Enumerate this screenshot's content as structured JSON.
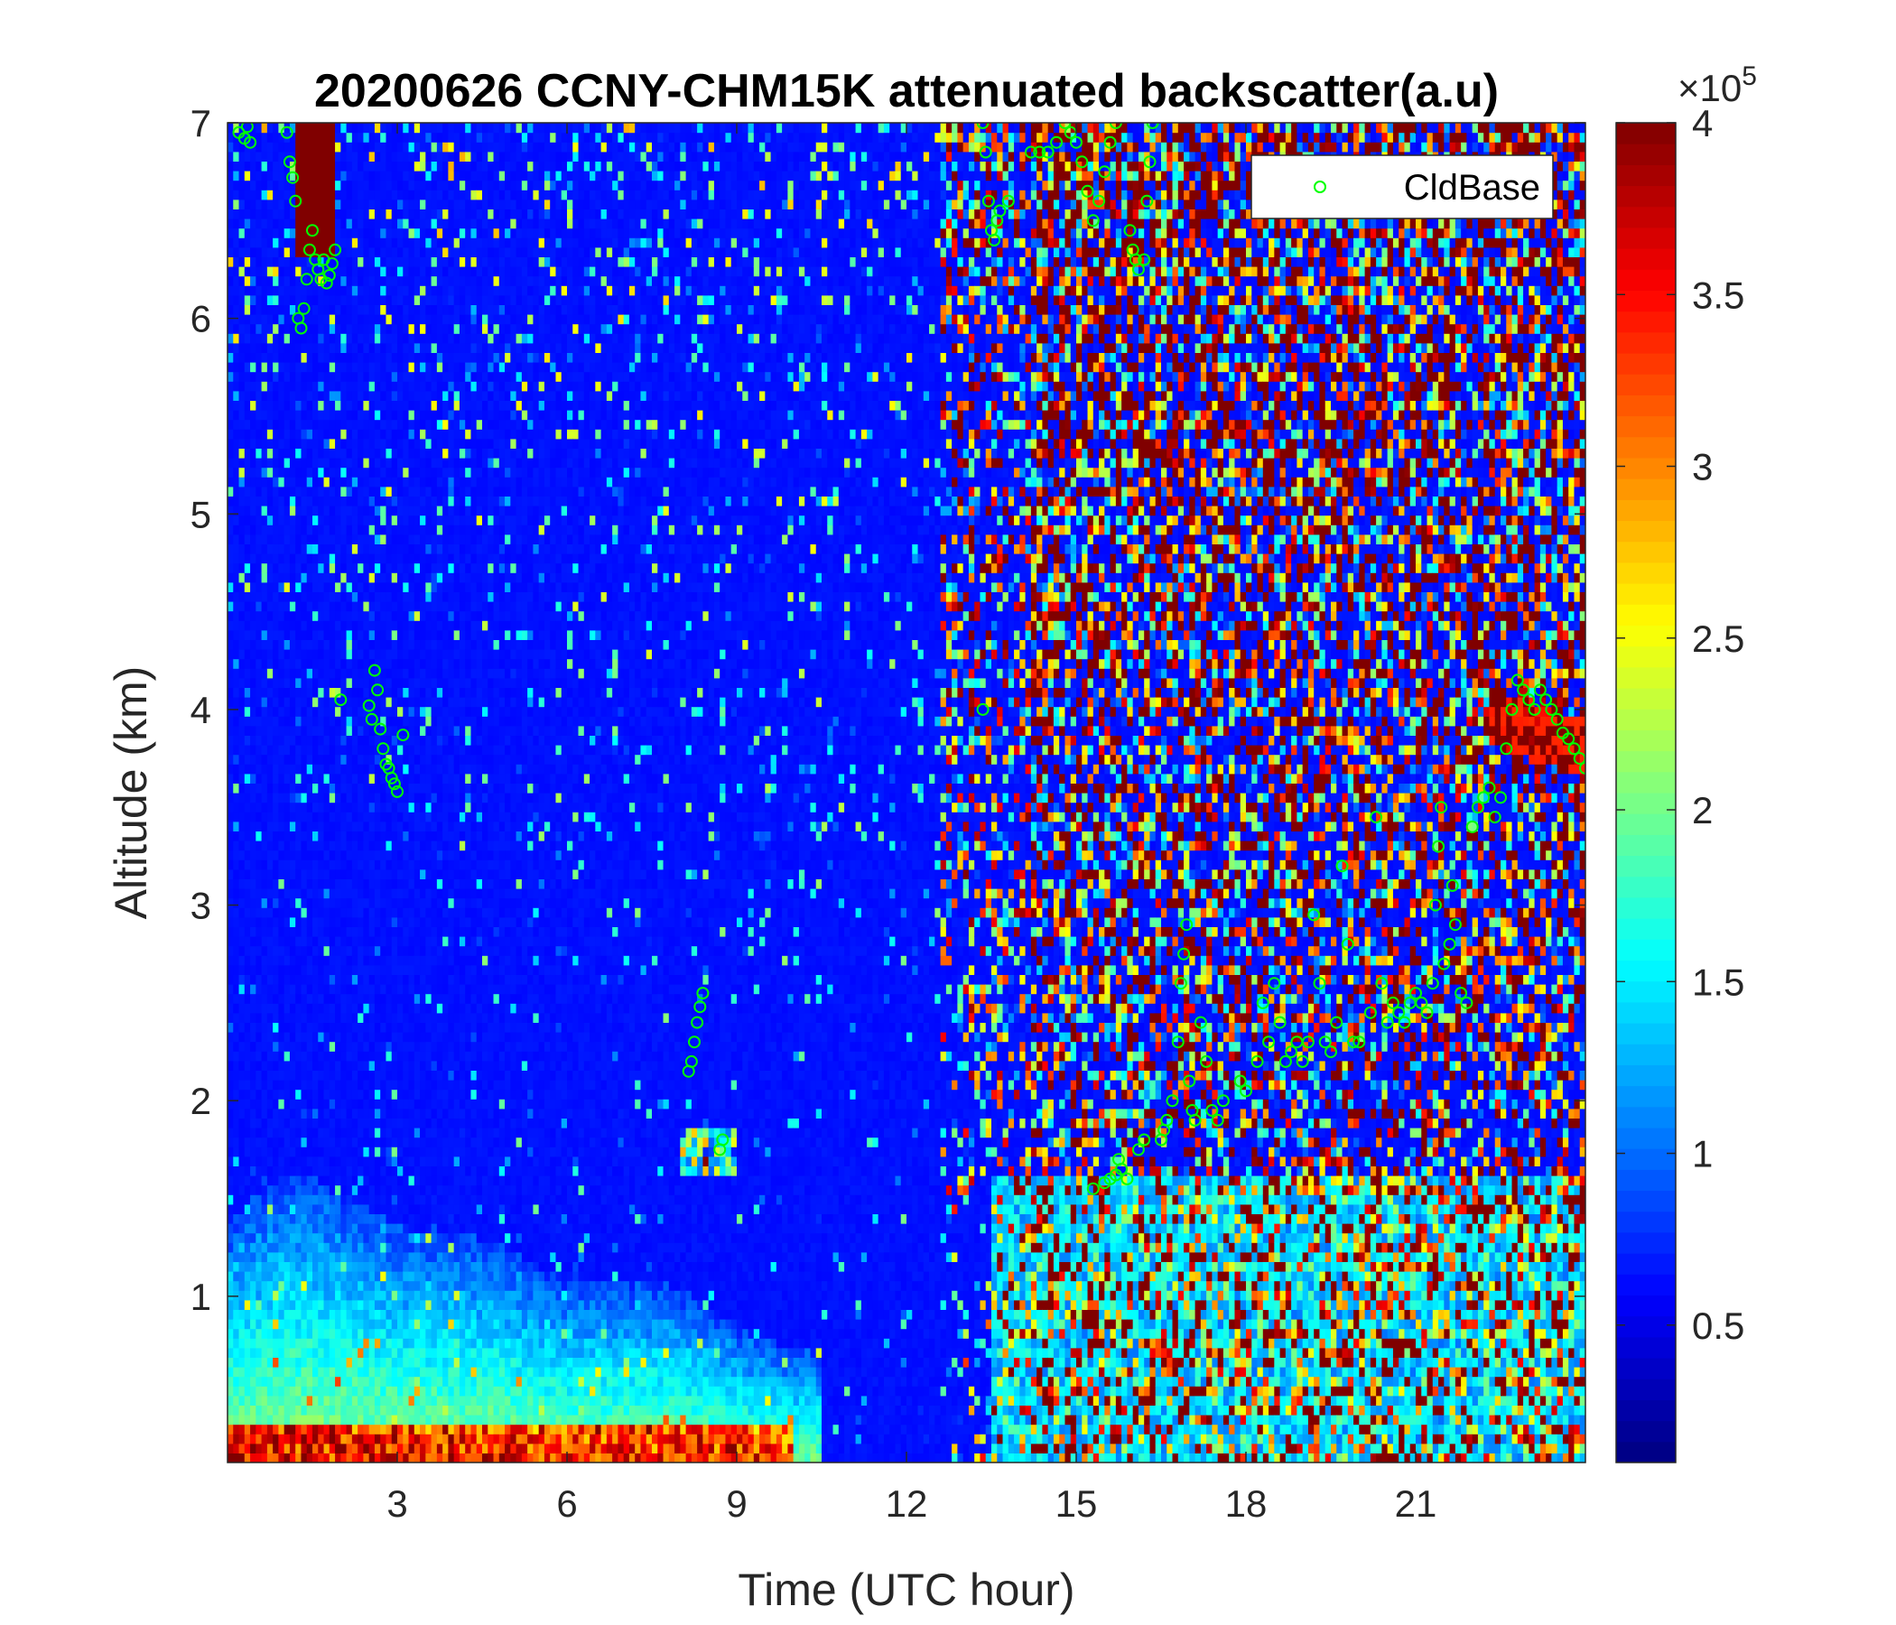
{
  "chart_data": {
    "type": "heatmap",
    "title": "20200626 CCNY-CHM15K attenuated backscatter(a.u)",
    "xlabel": "Time (UTC hour)",
    "ylabel": "Altitude (km)",
    "xlim": [
      0,
      24
    ],
    "ylim": [
      0.15,
      7
    ],
    "xticks": [
      3,
      6,
      9,
      12,
      15,
      18,
      21
    ],
    "yticks": [
      1,
      2,
      3,
      4,
      5,
      6,
      7
    ],
    "colorbar": {
      "colormap": "jet",
      "range": [
        0.1,
        4.0
      ],
      "ticks": [
        0.5,
        1,
        1.5,
        2,
        2.5,
        3,
        3.5,
        4
      ],
      "tick_labels": [
        "0.5",
        "1",
        "1.5",
        "2",
        "2.5",
        "3",
        "3.5",
        "4"
      ],
      "exponent_base": "×10",
      "exponent_power": "5"
    },
    "legend": {
      "position": "top-right",
      "entries": [
        {
          "name": "CldBase",
          "marker": "circle",
          "color": "#00ff00"
        }
      ]
    },
    "series": [
      {
        "name": "CldBase",
        "type": "scatter",
        "points": [
          [
            0.2,
            6.95
          ],
          [
            0.3,
            6.92
          ],
          [
            0.35,
            6.98
          ],
          [
            0.4,
            6.9
          ],
          [
            1.05,
            6.95
          ],
          [
            1.1,
            6.8
          ],
          [
            1.15,
            6.72
          ],
          [
            1.2,
            6.6
          ],
          [
            1.25,
            6.0
          ],
          [
            1.3,
            5.95
          ],
          [
            1.35,
            6.05
          ],
          [
            1.4,
            6.2
          ],
          [
            1.45,
            6.35
          ],
          [
            1.5,
            6.45
          ],
          [
            1.55,
            6.3
          ],
          [
            1.6,
            6.25
          ],
          [
            1.65,
            6.2
          ],
          [
            1.7,
            6.3
          ],
          [
            1.75,
            6.18
          ],
          [
            1.8,
            6.22
          ],
          [
            1.85,
            6.28
          ],
          [
            1.9,
            6.35
          ],
          [
            2.0,
            4.05
          ],
          [
            2.5,
            4.02
          ],
          [
            2.55,
            3.95
          ],
          [
            2.6,
            4.2
          ],
          [
            2.65,
            4.1
          ],
          [
            2.7,
            3.9
          ],
          [
            2.75,
            3.8
          ],
          [
            2.8,
            3.72
          ],
          [
            2.85,
            3.7
          ],
          [
            2.9,
            3.65
          ],
          [
            2.95,
            3.62
          ],
          [
            3.0,
            3.58
          ],
          [
            3.1,
            3.87
          ],
          [
            8.15,
            2.15
          ],
          [
            8.2,
            2.2
          ],
          [
            8.25,
            2.3
          ],
          [
            8.3,
            2.4
          ],
          [
            8.35,
            2.48
          ],
          [
            8.4,
            2.55
          ],
          [
            8.7,
            1.75
          ],
          [
            8.75,
            1.8
          ],
          [
            13.35,
            7.0
          ],
          [
            13.4,
            6.85
          ],
          [
            13.45,
            6.6
          ],
          [
            13.5,
            6.45
          ],
          [
            13.55,
            6.4
          ],
          [
            13.6,
            6.5
          ],
          [
            13.65,
            6.55
          ],
          [
            13.8,
            6.6
          ],
          [
            13.35,
            4.0
          ],
          [
            14.2,
            6.85
          ],
          [
            14.35,
            6.85
          ],
          [
            14.5,
            6.85
          ],
          [
            14.65,
            6.9
          ],
          [
            14.8,
            7.0
          ],
          [
            14.9,
            6.95
          ],
          [
            15.0,
            6.9
          ],
          [
            15.1,
            6.8
          ],
          [
            15.2,
            6.65
          ],
          [
            15.3,
            6.5
          ],
          [
            15.4,
            6.6
          ],
          [
            15.5,
            6.75
          ],
          [
            15.6,
            6.9
          ],
          [
            15.7,
            7.0
          ],
          [
            15.95,
            6.45
          ],
          [
            16.0,
            6.35
          ],
          [
            16.05,
            6.3
          ],
          [
            16.1,
            6.25
          ],
          [
            16.2,
            6.3
          ],
          [
            16.25,
            6.6
          ],
          [
            16.3,
            6.8
          ],
          [
            16.35,
            7.0
          ],
          [
            15.3,
            1.55
          ],
          [
            15.5,
            1.58
          ],
          [
            15.6,
            1.6
          ],
          [
            15.7,
            1.62
          ],
          [
            15.75,
            1.7
          ],
          [
            15.8,
            1.65
          ],
          [
            15.9,
            1.6
          ],
          [
            16.1,
            1.75
          ],
          [
            16.2,
            1.8
          ],
          [
            16.5,
            1.8
          ],
          [
            16.55,
            1.85
          ],
          [
            16.6,
            1.9
          ],
          [
            16.7,
            2.0
          ],
          [
            16.8,
            2.3
          ],
          [
            16.85,
            2.6
          ],
          [
            16.9,
            2.75
          ],
          [
            16.95,
            2.9
          ],
          [
            17.0,
            2.1
          ],
          [
            17.05,
            1.95
          ],
          [
            17.1,
            1.9
          ],
          [
            17.2,
            2.4
          ],
          [
            17.3,
            2.2
          ],
          [
            17.4,
            1.95
          ],
          [
            17.5,
            1.9
          ],
          [
            17.6,
            2.0
          ],
          [
            17.9,
            2.1
          ],
          [
            18.0,
            2.05
          ],
          [
            18.2,
            2.2
          ],
          [
            18.3,
            2.5
          ],
          [
            18.4,
            2.3
          ],
          [
            18.5,
            2.6
          ],
          [
            18.6,
            2.4
          ],
          [
            18.7,
            2.2
          ],
          [
            18.8,
            2.25
          ],
          [
            18.9,
            2.3
          ],
          [
            19.0,
            2.2
          ],
          [
            19.1,
            2.3
          ],
          [
            19.2,
            2.95
          ],
          [
            19.3,
            2.6
          ],
          [
            19.4,
            2.3
          ],
          [
            19.5,
            2.25
          ],
          [
            19.6,
            2.4
          ],
          [
            19.7,
            3.2
          ],
          [
            19.8,
            2.8
          ],
          [
            19.9,
            2.3
          ],
          [
            20.0,
            2.3
          ],
          [
            20.2,
            2.45
          ],
          [
            20.3,
            3.45
          ],
          [
            20.4,
            2.6
          ],
          [
            20.5,
            2.4
          ],
          [
            20.6,
            2.5
          ],
          [
            20.7,
            2.45
          ],
          [
            20.8,
            2.4
          ],
          [
            20.9,
            2.5
          ],
          [
            21.0,
            2.55
          ],
          [
            21.1,
            2.5
          ],
          [
            21.2,
            2.45
          ],
          [
            21.3,
            2.6
          ],
          [
            21.35,
            3.0
          ],
          [
            21.4,
            3.3
          ],
          [
            21.45,
            3.5
          ],
          [
            21.5,
            2.7
          ],
          [
            21.6,
            2.8
          ],
          [
            21.65,
            3.1
          ],
          [
            21.7,
            2.9
          ],
          [
            21.8,
            2.55
          ],
          [
            21.9,
            2.5
          ],
          [
            22.0,
            3.4
          ],
          [
            22.1,
            3.5
          ],
          [
            22.2,
            3.55
          ],
          [
            22.3,
            3.6
          ],
          [
            22.4,
            3.45
          ],
          [
            22.5,
            3.55
          ],
          [
            22.6,
            3.8
          ],
          [
            22.7,
            4.0
          ],
          [
            22.8,
            4.15
          ],
          [
            22.9,
            4.1
          ],
          [
            23.0,
            4.05
          ],
          [
            23.1,
            4.0
          ],
          [
            23.2,
            4.1
          ],
          [
            23.3,
            4.05
          ],
          [
            23.4,
            4.0
          ],
          [
            23.5,
            3.95
          ],
          [
            23.6,
            3.88
          ],
          [
            23.7,
            3.85
          ],
          [
            23.8,
            3.8
          ],
          [
            23.9,
            3.75
          ],
          [
            24.0,
            3.7
          ]
        ]
      }
    ]
  }
}
